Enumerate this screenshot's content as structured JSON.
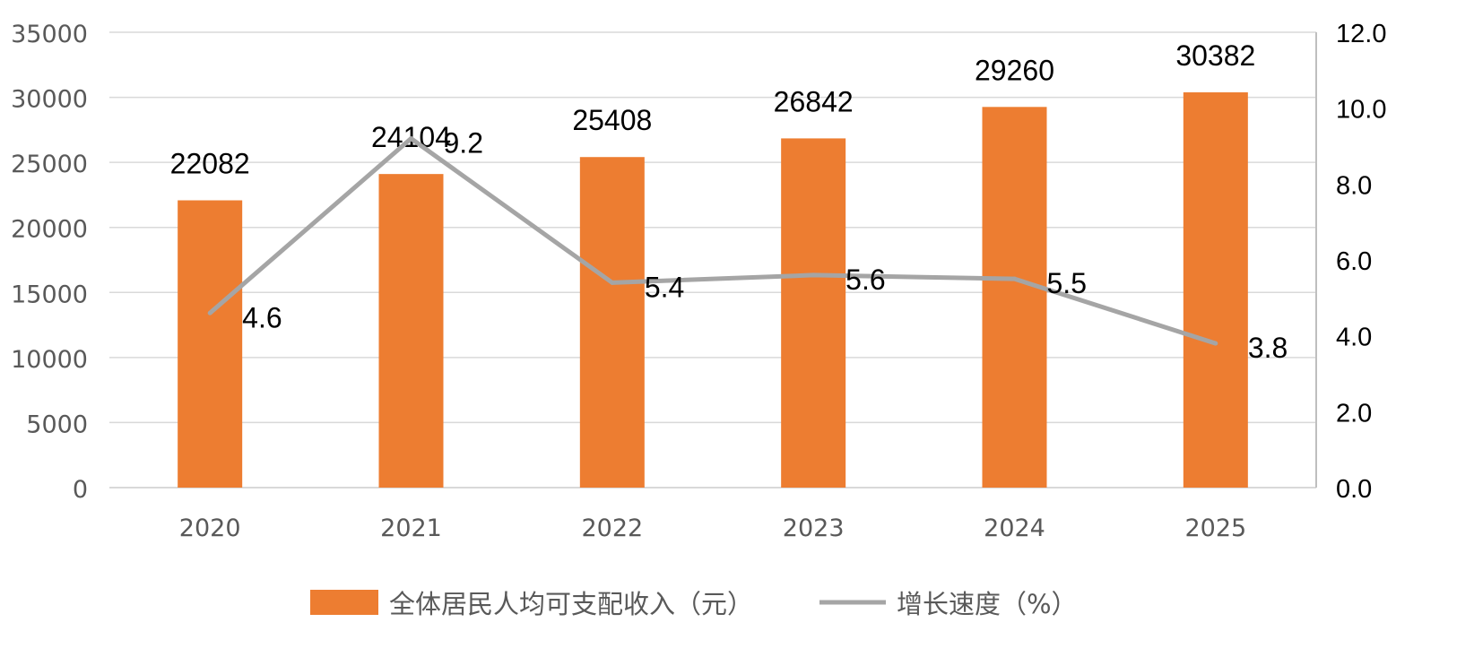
{
  "chart_data": {
    "type": "bar",
    "categories": [
      "2020",
      "2021",
      "2022",
      "2023",
      "2024",
      "2025"
    ],
    "series": [
      {
        "name": "全体居民人均可支配收入（元）",
        "type": "bar",
        "axis": "left",
        "color": "#ED7D31",
        "values": [
          22082,
          24104,
          25408,
          26842,
          29260,
          30382
        ],
        "labels": [
          "22082",
          "24104",
          "25408",
          "26842",
          "29260",
          "30382"
        ]
      },
      {
        "name": "增长速度（%）",
        "type": "line",
        "axis": "right",
        "color": "#A5A5A5",
        "values": [
          4.6,
          9.2,
          5.4,
          5.6,
          5.5,
          3.8
        ],
        "labels": [
          "4.6",
          "9.2",
          "5.4",
          "5.6",
          "5.5",
          "3.8"
        ]
      }
    ],
    "y_left": {
      "range": [
        0,
        35000
      ],
      "ticks": [
        "0",
        "5000",
        "10000",
        "15000",
        "20000",
        "25000",
        "30000",
        "35000"
      ]
    },
    "y_right": {
      "range": [
        0,
        12
      ],
      "ticks": [
        "0.0",
        "2.0",
        "4.0",
        "6.0",
        "8.0",
        "10.0",
        "12.0"
      ]
    },
    "grid": true,
    "legend": "bottom"
  }
}
